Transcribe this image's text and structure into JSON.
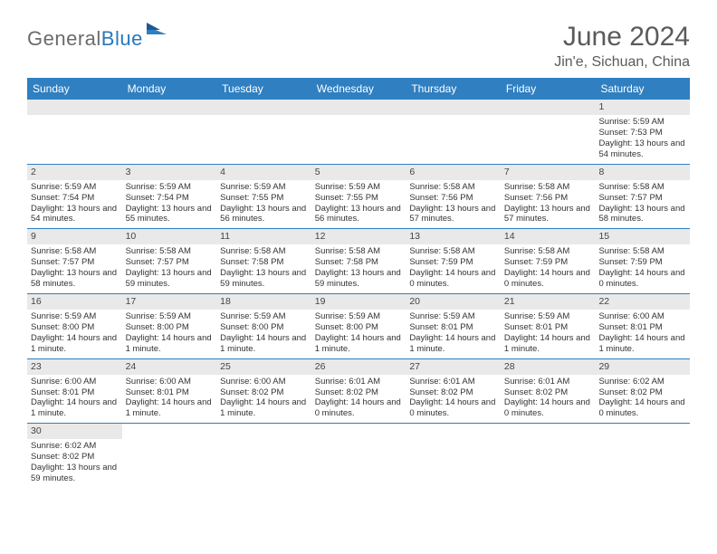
{
  "logo": {
    "textGray": "General",
    "textBlue": "Blue"
  },
  "title": "June 2024",
  "location": "Jin'e, Sichuan, China",
  "colors": {
    "headerBg": "#2f7fc1",
    "headerText": "#ffffff",
    "dayBarBg": "#e9e9e9",
    "rowBorder": "#2f7fc1",
    "bodyText": "#333333",
    "titleText": "#5a5a5a"
  },
  "dayHeaders": [
    "Sunday",
    "Monday",
    "Tuesday",
    "Wednesday",
    "Thursday",
    "Friday",
    "Saturday"
  ],
  "weeks": [
    [
      null,
      null,
      null,
      null,
      null,
      null,
      {
        "n": "1",
        "sr": "5:59 AM",
        "ss": "7:53 PM",
        "dl": "13 hours and 54 minutes."
      }
    ],
    [
      {
        "n": "2",
        "sr": "5:59 AM",
        "ss": "7:54 PM",
        "dl": "13 hours and 54 minutes."
      },
      {
        "n": "3",
        "sr": "5:59 AM",
        "ss": "7:54 PM",
        "dl": "13 hours and 55 minutes."
      },
      {
        "n": "4",
        "sr": "5:59 AM",
        "ss": "7:55 PM",
        "dl": "13 hours and 56 minutes."
      },
      {
        "n": "5",
        "sr": "5:59 AM",
        "ss": "7:55 PM",
        "dl": "13 hours and 56 minutes."
      },
      {
        "n": "6",
        "sr": "5:58 AM",
        "ss": "7:56 PM",
        "dl": "13 hours and 57 minutes."
      },
      {
        "n": "7",
        "sr": "5:58 AM",
        "ss": "7:56 PM",
        "dl": "13 hours and 57 minutes."
      },
      {
        "n": "8",
        "sr": "5:58 AM",
        "ss": "7:57 PM",
        "dl": "13 hours and 58 minutes."
      }
    ],
    [
      {
        "n": "9",
        "sr": "5:58 AM",
        "ss": "7:57 PM",
        "dl": "13 hours and 58 minutes."
      },
      {
        "n": "10",
        "sr": "5:58 AM",
        "ss": "7:57 PM",
        "dl": "13 hours and 59 minutes."
      },
      {
        "n": "11",
        "sr": "5:58 AM",
        "ss": "7:58 PM",
        "dl": "13 hours and 59 minutes."
      },
      {
        "n": "12",
        "sr": "5:58 AM",
        "ss": "7:58 PM",
        "dl": "13 hours and 59 minutes."
      },
      {
        "n": "13",
        "sr": "5:58 AM",
        "ss": "7:59 PM",
        "dl": "14 hours and 0 minutes."
      },
      {
        "n": "14",
        "sr": "5:58 AM",
        "ss": "7:59 PM",
        "dl": "14 hours and 0 minutes."
      },
      {
        "n": "15",
        "sr": "5:58 AM",
        "ss": "7:59 PM",
        "dl": "14 hours and 0 minutes."
      }
    ],
    [
      {
        "n": "16",
        "sr": "5:59 AM",
        "ss": "8:00 PM",
        "dl": "14 hours and 1 minute."
      },
      {
        "n": "17",
        "sr": "5:59 AM",
        "ss": "8:00 PM",
        "dl": "14 hours and 1 minute."
      },
      {
        "n": "18",
        "sr": "5:59 AM",
        "ss": "8:00 PM",
        "dl": "14 hours and 1 minute."
      },
      {
        "n": "19",
        "sr": "5:59 AM",
        "ss": "8:00 PM",
        "dl": "14 hours and 1 minute."
      },
      {
        "n": "20",
        "sr": "5:59 AM",
        "ss": "8:01 PM",
        "dl": "14 hours and 1 minute."
      },
      {
        "n": "21",
        "sr": "5:59 AM",
        "ss": "8:01 PM",
        "dl": "14 hours and 1 minute."
      },
      {
        "n": "22",
        "sr": "6:00 AM",
        "ss": "8:01 PM",
        "dl": "14 hours and 1 minute."
      }
    ],
    [
      {
        "n": "23",
        "sr": "6:00 AM",
        "ss": "8:01 PM",
        "dl": "14 hours and 1 minute."
      },
      {
        "n": "24",
        "sr": "6:00 AM",
        "ss": "8:01 PM",
        "dl": "14 hours and 1 minute."
      },
      {
        "n": "25",
        "sr": "6:00 AM",
        "ss": "8:02 PM",
        "dl": "14 hours and 1 minute."
      },
      {
        "n": "26",
        "sr": "6:01 AM",
        "ss": "8:02 PM",
        "dl": "14 hours and 0 minutes."
      },
      {
        "n": "27",
        "sr": "6:01 AM",
        "ss": "8:02 PM",
        "dl": "14 hours and 0 minutes."
      },
      {
        "n": "28",
        "sr": "6:01 AM",
        "ss": "8:02 PM",
        "dl": "14 hours and 0 minutes."
      },
      {
        "n": "29",
        "sr": "6:02 AM",
        "ss": "8:02 PM",
        "dl": "14 hours and 0 minutes."
      }
    ],
    [
      {
        "n": "30",
        "sr": "6:02 AM",
        "ss": "8:02 PM",
        "dl": "13 hours and 59 minutes."
      },
      null,
      null,
      null,
      null,
      null,
      null
    ]
  ],
  "labels": {
    "sunrisePrefix": "Sunrise: ",
    "sunsetPrefix": "Sunset: ",
    "daylightPrefix": "Daylight: "
  }
}
